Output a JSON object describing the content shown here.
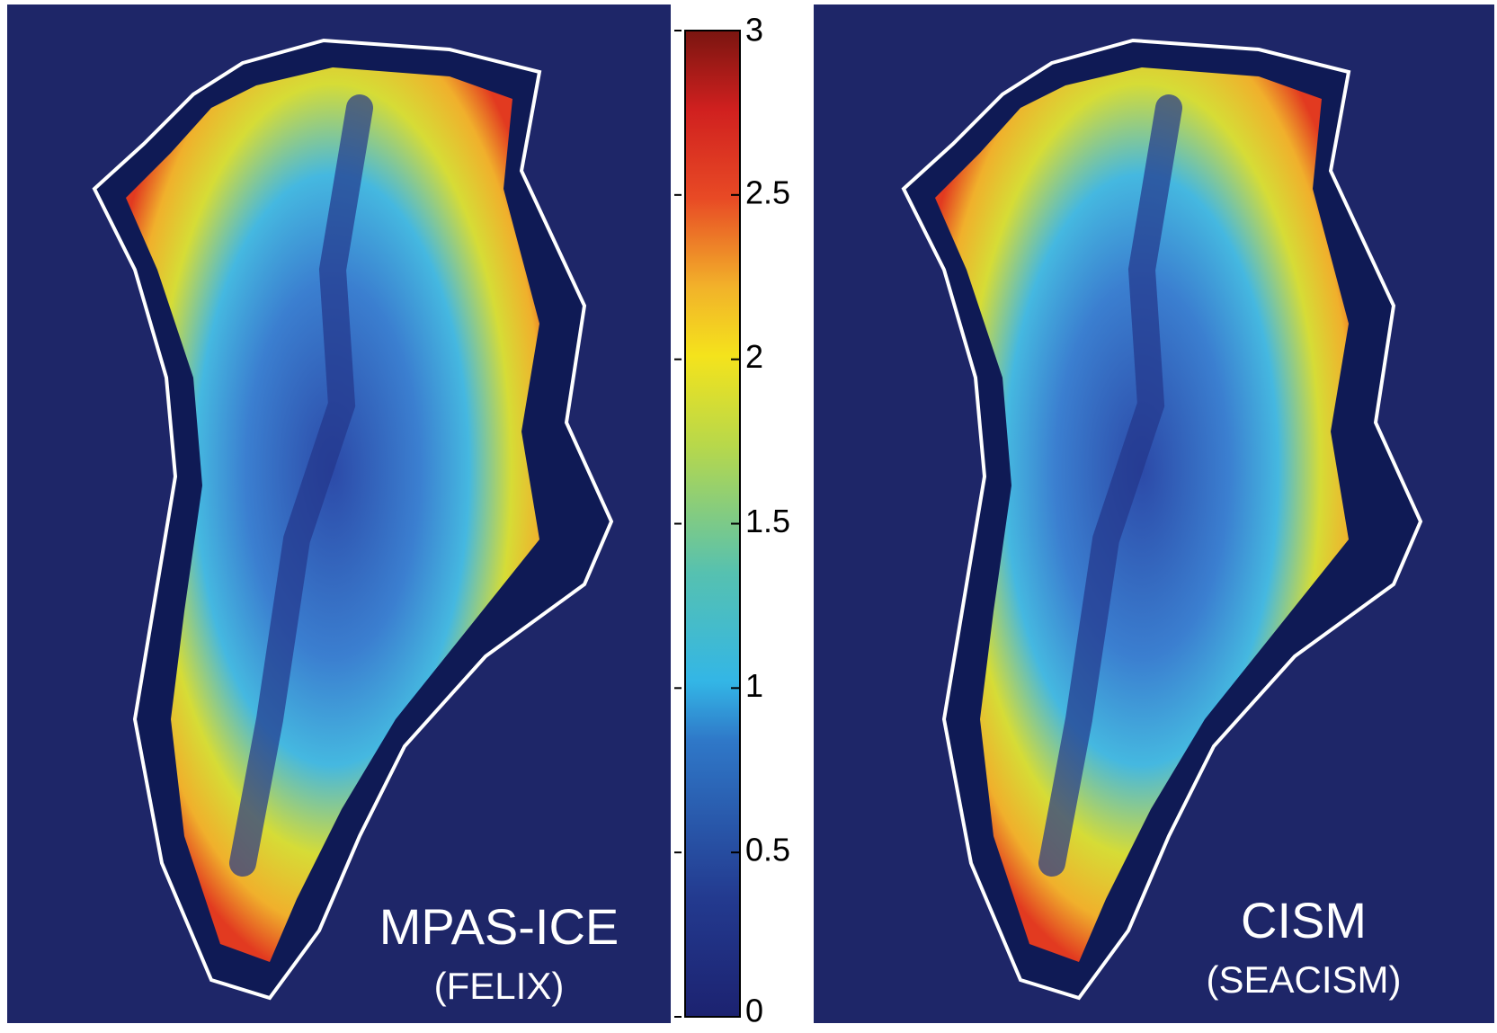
{
  "colorbar": {
    "range": [
      0,
      3
    ],
    "ticks": [
      0,
      0.5,
      1,
      1.5,
      2,
      2.5,
      3
    ]
  },
  "panels": [
    {
      "label": "MPAS-ICE",
      "sublabel": "(FELIX)"
    },
    {
      "label": "CISM",
      "sublabel": "(SEACISM)"
    }
  ]
}
